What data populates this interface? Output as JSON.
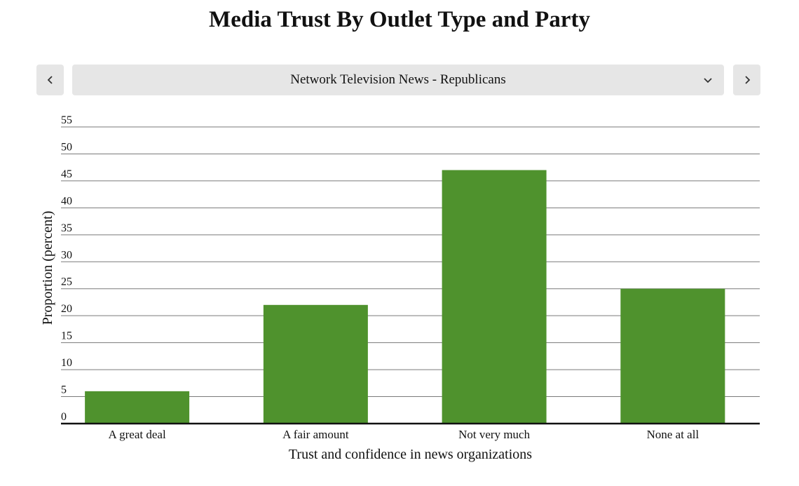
{
  "page": {
    "title": "Media Trust By Outlet Type and Party"
  },
  "controls": {
    "selected_option": "Network Television News - Republicans",
    "prev_icon": "chevron-left-icon",
    "next_icon": "chevron-right-icon",
    "dropdown_icon": "chevron-down-icon",
    "button_color": "#e6e6e6"
  },
  "chart_data": {
    "type": "bar",
    "categories": [
      "A great deal",
      "A fair amount",
      "Not very much",
      "None at all"
    ],
    "values": [
      6,
      22,
      47,
      25
    ],
    "xlabel": "Trust and confidence in news organizations",
    "ylabel": "Proportion (percent)",
    "ylim": [
      0,
      55
    ],
    "yticks": [
      0,
      5,
      10,
      15,
      20,
      25,
      30,
      35,
      40,
      45,
      50,
      55
    ],
    "grid": true,
    "bar_color": "#4f922d"
  }
}
